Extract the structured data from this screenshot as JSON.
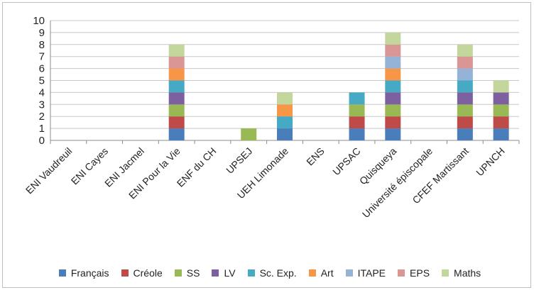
{
  "chart_data": {
    "type": "bar",
    "stacked": true,
    "categories": [
      "ENI Vaudreuil",
      "ENI Cayes",
      "ENI Jacmel",
      "ENI Pour la Vie",
      "ENF du CH",
      "UPSEJ",
      "UEH Limonade",
      "ENS",
      "UPSAC",
      "Quisqueya",
      "Université épiscopale",
      "CFEF Martissant",
      "UPNCH"
    ],
    "ylim": [
      0,
      10
    ],
    "yticks": [
      "0",
      "1",
      "2",
      "3",
      "4",
      "5",
      "6",
      "7",
      "8",
      "9",
      "10"
    ],
    "grid": true,
    "legend_position": "bottom",
    "series": [
      {
        "name": "Français",
        "color": "#4a7ebb",
        "values": [
          0,
          0,
          0,
          1,
          0,
          0,
          1,
          0,
          1,
          1,
          0,
          1,
          1
        ]
      },
      {
        "name": "Créole",
        "color": "#be4b48",
        "values": [
          0,
          0,
          0,
          1,
          0,
          0,
          0,
          0,
          1,
          1,
          0,
          1,
          1
        ]
      },
      {
        "name": "SS",
        "color": "#98b954",
        "values": [
          0,
          0,
          0,
          1,
          0,
          1,
          0,
          0,
          1,
          1,
          0,
          1,
          1
        ]
      },
      {
        "name": "LV",
        "color": "#7d60a0",
        "values": [
          0,
          0,
          0,
          1,
          0,
          0,
          0,
          0,
          0,
          1,
          0,
          1,
          1
        ]
      },
      {
        "name": "Sc. Exp.",
        "color": "#46aac5",
        "values": [
          0,
          0,
          0,
          1,
          0,
          0,
          1,
          0,
          1,
          1,
          0,
          1,
          0
        ]
      },
      {
        "name": "Art",
        "color": "#f79646",
        "values": [
          0,
          0,
          0,
          1,
          0,
          0,
          1,
          0,
          0,
          1,
          0,
          0,
          0
        ]
      },
      {
        "name": "ITAPE",
        "color": "#95b3d7",
        "values": [
          0,
          0,
          0,
          0,
          0,
          0,
          0,
          0,
          0,
          1,
          0,
          1,
          0
        ]
      },
      {
        "name": "EPS",
        "color": "#d99694",
        "values": [
          0,
          0,
          0,
          1,
          0,
          0,
          0,
          0,
          0,
          1,
          0,
          1,
          0
        ]
      },
      {
        "name": "Maths",
        "color": "#c3d69b",
        "values": [
          0,
          0,
          0,
          1,
          0,
          0,
          1,
          0,
          0,
          1,
          0,
          1,
          1
        ]
      }
    ]
  }
}
